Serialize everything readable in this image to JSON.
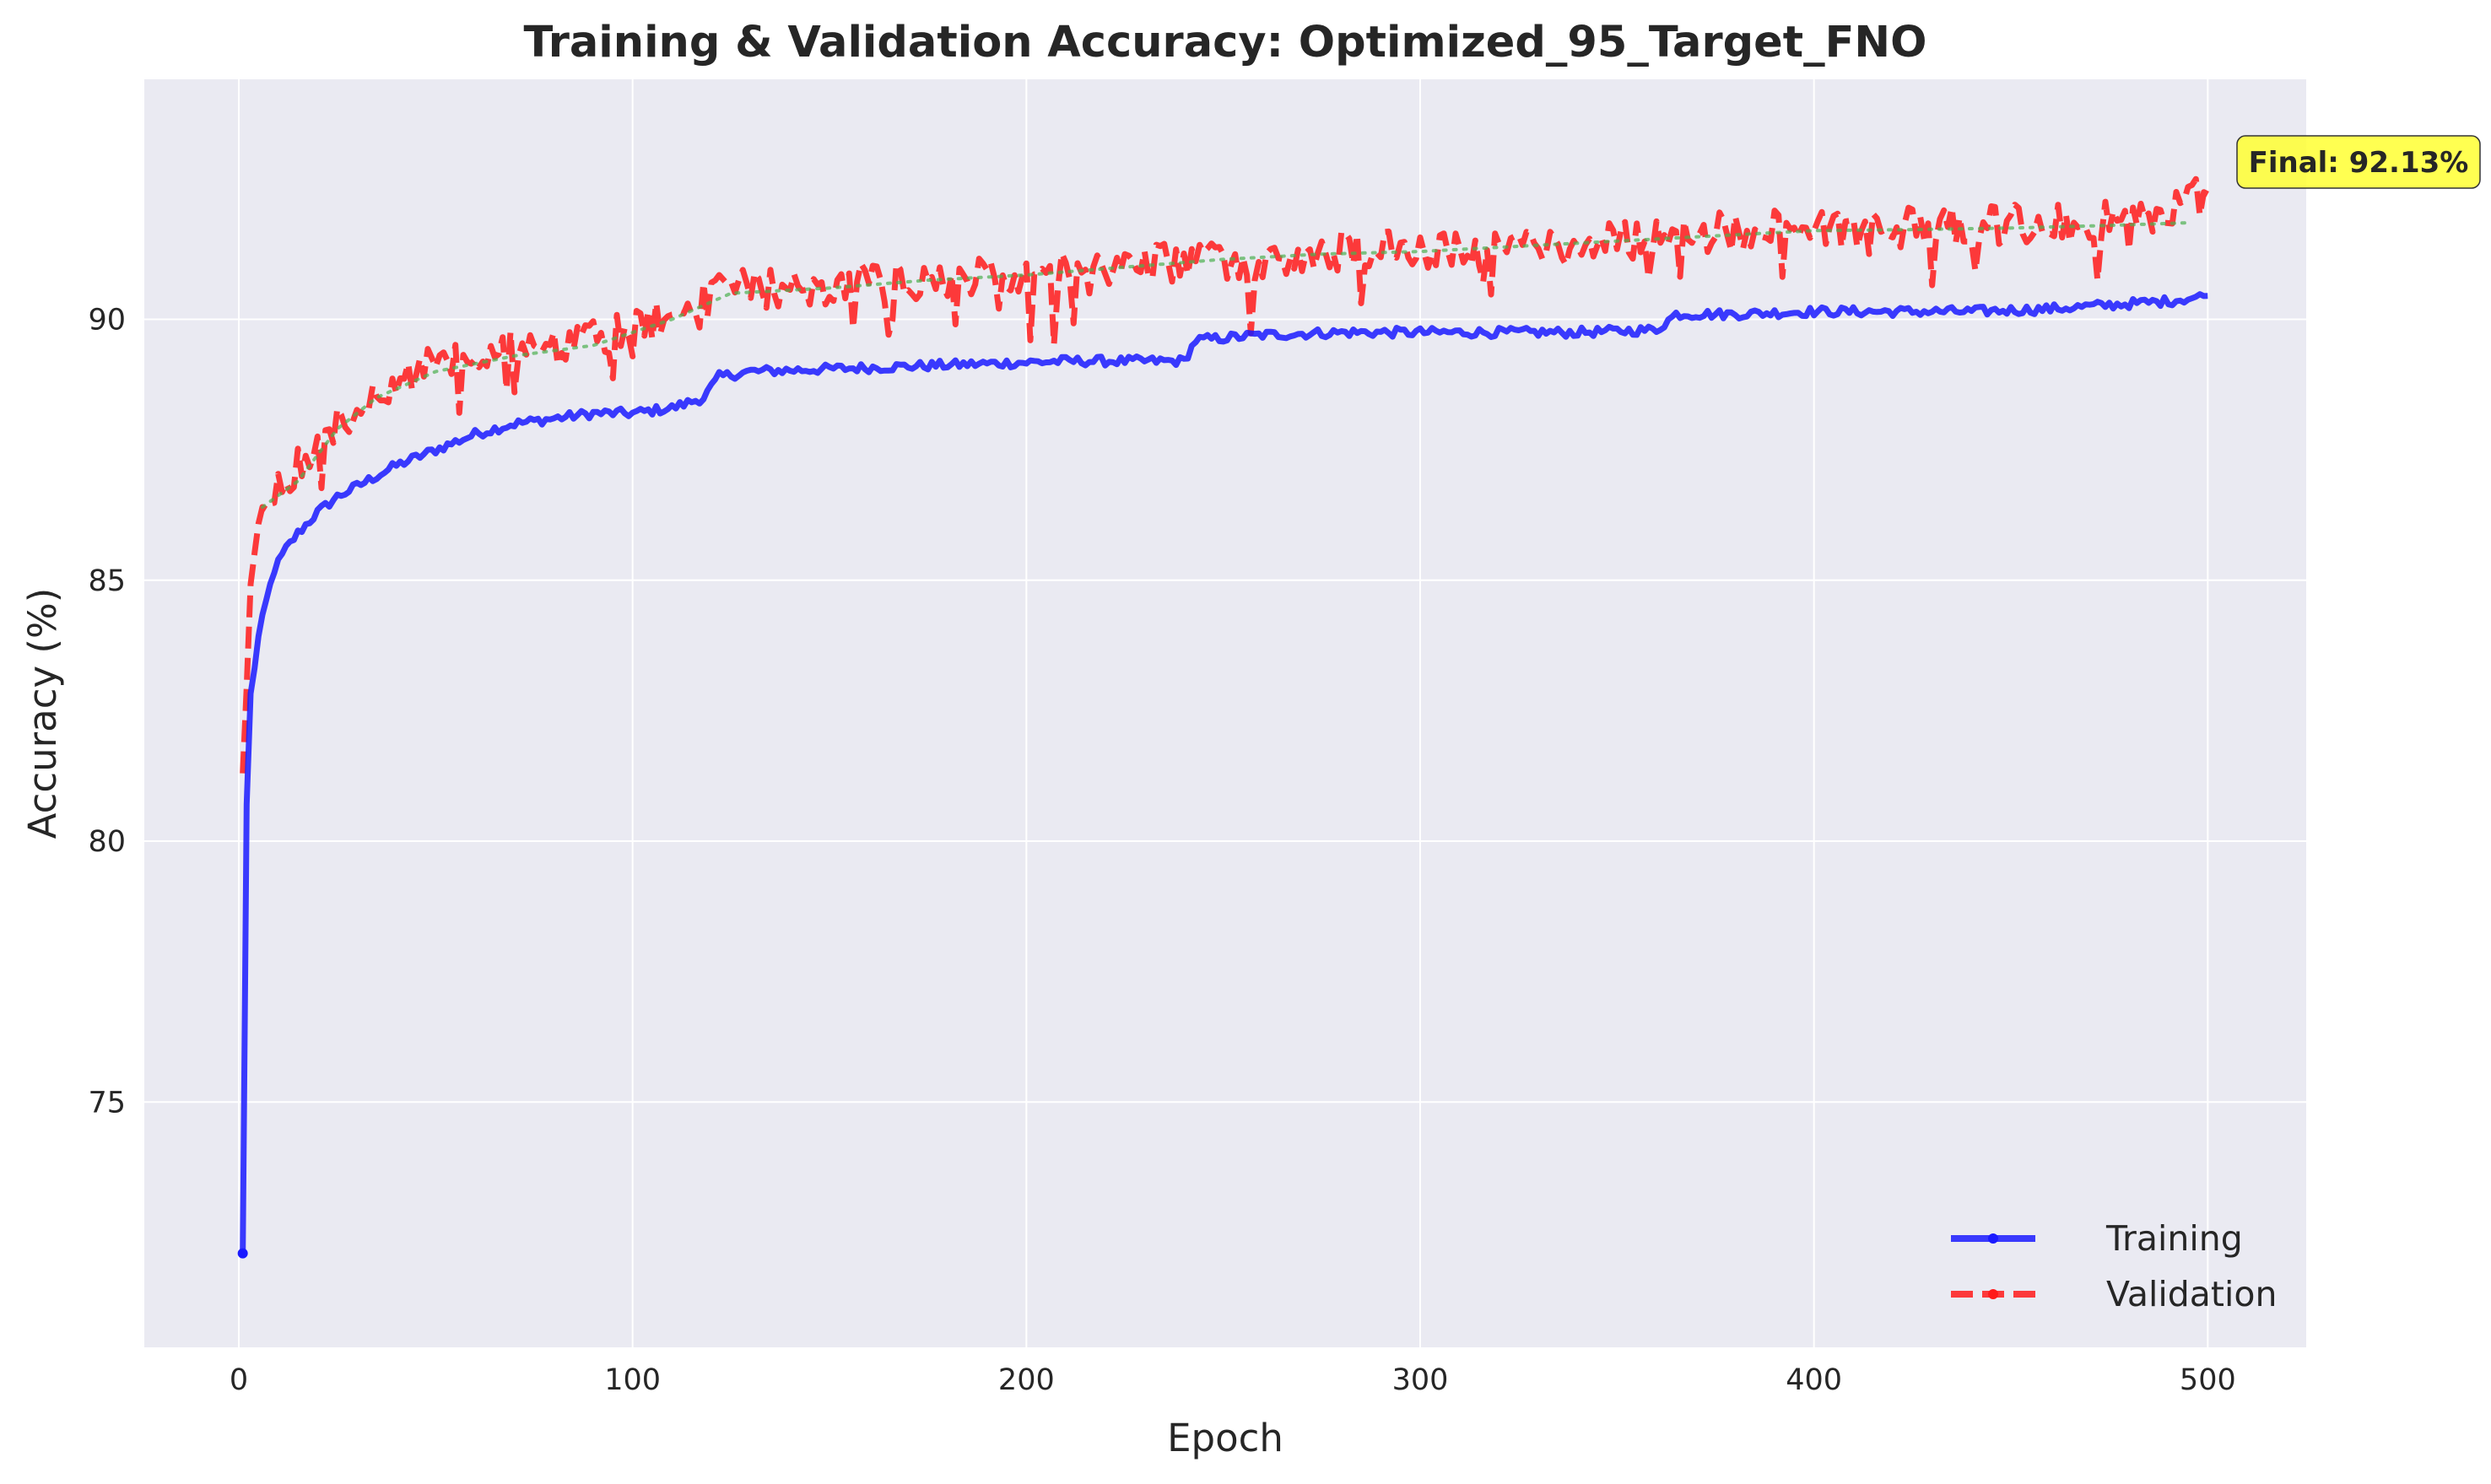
{
  "chart_data": {
    "type": "line",
    "title": "Training & Validation Accuracy: Optimized_95_Target_FNO",
    "xlabel": "Epoch",
    "ylabel": "Accuracy (%)",
    "xlim": [
      -24,
      525
    ],
    "ylim": [
      70.3,
      94.6
    ],
    "xticks": [
      0,
      100,
      200,
      300,
      400,
      500
    ],
    "yticks": [
      75,
      80,
      85,
      90
    ],
    "grid": true,
    "legend_position": "lower right",
    "annotation": {
      "text": "Final: 92.13%",
      "x": 500,
      "y": 92.13
    },
    "series": [
      {
        "name": "Training",
        "color": "#1a1aff",
        "style": "solid",
        "keypoints": [
          [
            1,
            72.1
          ],
          [
            2,
            80.7
          ],
          [
            3,
            82.8
          ],
          [
            5,
            83.9
          ],
          [
            7,
            84.6
          ],
          [
            9,
            85.2
          ],
          [
            12,
            85.6
          ],
          [
            15,
            85.9
          ],
          [
            20,
            86.3
          ],
          [
            25,
            86.6
          ],
          [
            30,
            86.8
          ],
          [
            35,
            87.0
          ],
          [
            40,
            87.2
          ],
          [
            50,
            87.5
          ],
          [
            60,
            87.8
          ],
          [
            70,
            88.0
          ],
          [
            80,
            88.1
          ],
          [
            90,
            88.2
          ],
          [
            100,
            88.2
          ],
          [
            110,
            88.3
          ],
          [
            118,
            88.5
          ],
          [
            122,
            88.9
          ],
          [
            130,
            89.0
          ],
          [
            150,
            89.05
          ],
          [
            170,
            89.1
          ],
          [
            190,
            89.15
          ],
          [
            210,
            89.2
          ],
          [
            230,
            89.2
          ],
          [
            240,
            89.2
          ],
          [
            243,
            89.6
          ],
          [
            260,
            89.7
          ],
          [
            280,
            89.75
          ],
          [
            300,
            89.75
          ],
          [
            320,
            89.75
          ],
          [
            340,
            89.75
          ],
          [
            360,
            89.8
          ],
          [
            365,
            90.1
          ],
          [
            380,
            90.1
          ],
          [
            400,
            90.15
          ],
          [
            420,
            90.15
          ],
          [
            440,
            90.15
          ],
          [
            460,
            90.2
          ],
          [
            480,
            90.3
          ],
          [
            490,
            90.35
          ],
          [
            500,
            90.45
          ]
        ],
        "jitter": 0.09
      },
      {
        "name": "Validation",
        "color": "#ff1a1a",
        "style": "dashed",
        "keypoints": [
          [
            1,
            81.3
          ],
          [
            3,
            84.6
          ],
          [
            5,
            86.2
          ],
          [
            8,
            86.8
          ],
          [
            12,
            87.0
          ],
          [
            18,
            87.4
          ],
          [
            25,
            88.0
          ],
          [
            35,
            88.6
          ],
          [
            45,
            89.0
          ],
          [
            60,
            89.3
          ],
          [
            80,
            89.5
          ],
          [
            100,
            89.8
          ],
          [
            115,
            90.2
          ],
          [
            125,
            90.6
          ],
          [
            140,
            90.6
          ],
          [
            160,
            90.7
          ],
          [
            180,
            90.8
          ],
          [
            200,
            90.9
          ],
          [
            220,
            91.0
          ],
          [
            240,
            91.1
          ],
          [
            260,
            91.2
          ],
          [
            280,
            91.3
          ],
          [
            300,
            91.35
          ],
          [
            320,
            91.4
          ],
          [
            340,
            91.5
          ],
          [
            360,
            91.55
          ],
          [
            380,
            91.7
          ],
          [
            400,
            91.75
          ],
          [
            420,
            91.75
          ],
          [
            440,
            91.8
          ],
          [
            460,
            91.85
          ],
          [
            480,
            91.9
          ],
          [
            500,
            92.4
          ]
        ],
        "jitter": 0.38
      },
      {
        "name": "",
        "color": "#4caf50",
        "style": "dotted",
        "keypoints": [
          [
            6,
            86.4
          ],
          [
            15,
            86.9
          ],
          [
            25,
            87.9
          ],
          [
            35,
            88.5
          ],
          [
            50,
            89.0
          ],
          [
            70,
            89.3
          ],
          [
            90,
            89.5
          ],
          [
            110,
            90.0
          ],
          [
            125,
            90.5
          ],
          [
            150,
            90.6
          ],
          [
            175,
            90.75
          ],
          [
            200,
            90.85
          ],
          [
            225,
            91.0
          ],
          [
            250,
            91.15
          ],
          [
            275,
            91.25
          ],
          [
            300,
            91.3
          ],
          [
            325,
            91.4
          ],
          [
            350,
            91.5
          ],
          [
            375,
            91.6
          ],
          [
            400,
            91.7
          ],
          [
            425,
            91.72
          ],
          [
            450,
            91.75
          ],
          [
            475,
            91.8
          ],
          [
            495,
            91.85
          ]
        ],
        "jitter": 0
      }
    ]
  }
}
